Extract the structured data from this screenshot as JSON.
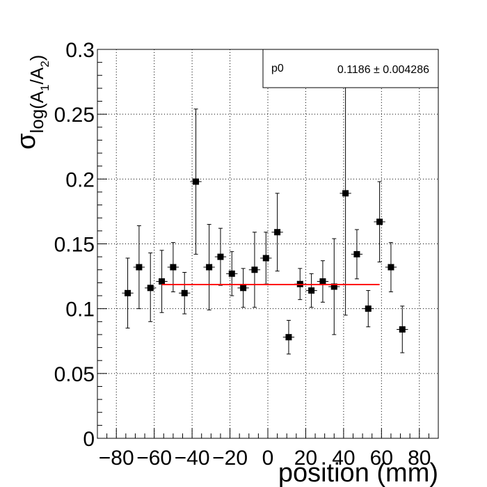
{
  "chart_data": {
    "type": "scatter",
    "title": "",
    "xlabel": "position (mm)",
    "ylabel": {
      "sigma": "σ",
      "sub_prefix": "log(A",
      "sub1": "1",
      "sub_mid": "/A",
      "sub2": "2",
      "sub_suffix": ")"
    },
    "xlim": [
      -90,
      90
    ],
    "ylim": [
      0,
      0.3
    ],
    "x_ticks": [
      -80,
      -60,
      -40,
      -20,
      0,
      20,
      40,
      60,
      80
    ],
    "x_tick_labels": [
      "−80",
      "−60",
      "−40",
      "−20",
      "0",
      "20",
      "40",
      "60",
      "80"
    ],
    "y_ticks": [
      0,
      0.05,
      0.1,
      0.15,
      0.2,
      0.25,
      0.3
    ],
    "y_tick_labels": [
      "0",
      "0.05",
      "0.1",
      "0.15",
      "0.2",
      "0.25",
      "0.3"
    ],
    "grid": true,
    "series": [
      {
        "marker": "square",
        "color": "#000000",
        "points": [
          {
            "x": -74,
            "y": 0.112,
            "yerr_lo": 0.027,
            "yerr_hi": 0.027
          },
          {
            "x": -68,
            "y": 0.132,
            "yerr_lo": 0.032,
            "yerr_hi": 0.032
          },
          {
            "x": -62,
            "y": 0.116,
            "yerr_lo": 0.026,
            "yerr_hi": 0.027
          },
          {
            "x": -56,
            "y": 0.121,
            "yerr_lo": 0.024,
            "yerr_hi": 0.024
          },
          {
            "x": -50,
            "y": 0.132,
            "yerr_lo": 0.019,
            "yerr_hi": 0.019
          },
          {
            "x": -44,
            "y": 0.112,
            "yerr_lo": 0.016,
            "yerr_hi": 0.016
          },
          {
            "x": -38,
            "y": 0.198,
            "yerr_lo": 0.056,
            "yerr_hi": 0.056
          },
          {
            "x": -31,
            "y": 0.132,
            "yerr_lo": 0.033,
            "yerr_hi": 0.033
          },
          {
            "x": -25,
            "y": 0.14,
            "yerr_lo": 0.022,
            "yerr_hi": 0.022
          },
          {
            "x": -19,
            "y": 0.127,
            "yerr_lo": 0.017,
            "yerr_hi": 0.017
          },
          {
            "x": -13,
            "y": 0.116,
            "yerr_lo": 0.015,
            "yerr_hi": 0.015
          },
          {
            "x": -7,
            "y": 0.13,
            "yerr_lo": 0.029,
            "yerr_hi": 0.029
          },
          {
            "x": -1,
            "y": 0.139,
            "yerr_lo": 0.02,
            "yerr_hi": 0.02
          },
          {
            "x": 5,
            "y": 0.159,
            "yerr_lo": 0.03,
            "yerr_hi": 0.03
          },
          {
            "x": 11,
            "y": 0.078,
            "yerr_lo": 0.013,
            "yerr_hi": 0.013
          },
          {
            "x": 17,
            "y": 0.119,
            "yerr_lo": 0.012,
            "yerr_hi": 0.012
          },
          {
            "x": 23,
            "y": 0.114,
            "yerr_lo": 0.013,
            "yerr_hi": 0.013
          },
          {
            "x": 29,
            "y": 0.121,
            "yerr_lo": 0.016,
            "yerr_hi": 0.016
          },
          {
            "x": 35,
            "y": 0.117,
            "yerr_lo": 0.037,
            "yerr_hi": 0.037
          },
          {
            "x": 41,
            "y": 0.189,
            "yerr_lo": 0.094,
            "yerr_hi": 0.12
          },
          {
            "x": 47,
            "y": 0.142,
            "yerr_lo": 0.019,
            "yerr_hi": 0.019
          },
          {
            "x": 53,
            "y": 0.1,
            "yerr_lo": 0.014,
            "yerr_hi": 0.014
          },
          {
            "x": 59,
            "y": 0.167,
            "yerr_lo": 0.031,
            "yerr_hi": 0.031
          },
          {
            "x": 65,
            "y": 0.132,
            "yerr_lo": 0.019,
            "yerr_hi": 0.019
          },
          {
            "x": 71,
            "y": 0.084,
            "yerr_lo": 0.018,
            "yerr_hi": 0.018
          }
        ],
        "xerr": 3
      }
    ],
    "fit": {
      "color": "#ff0000",
      "x_range": [
        -56,
        59
      ],
      "value": 0.1186
    },
    "stats_box": {
      "param_name": "p0",
      "param_value": "0.1186 ± 0.004286"
    }
  }
}
